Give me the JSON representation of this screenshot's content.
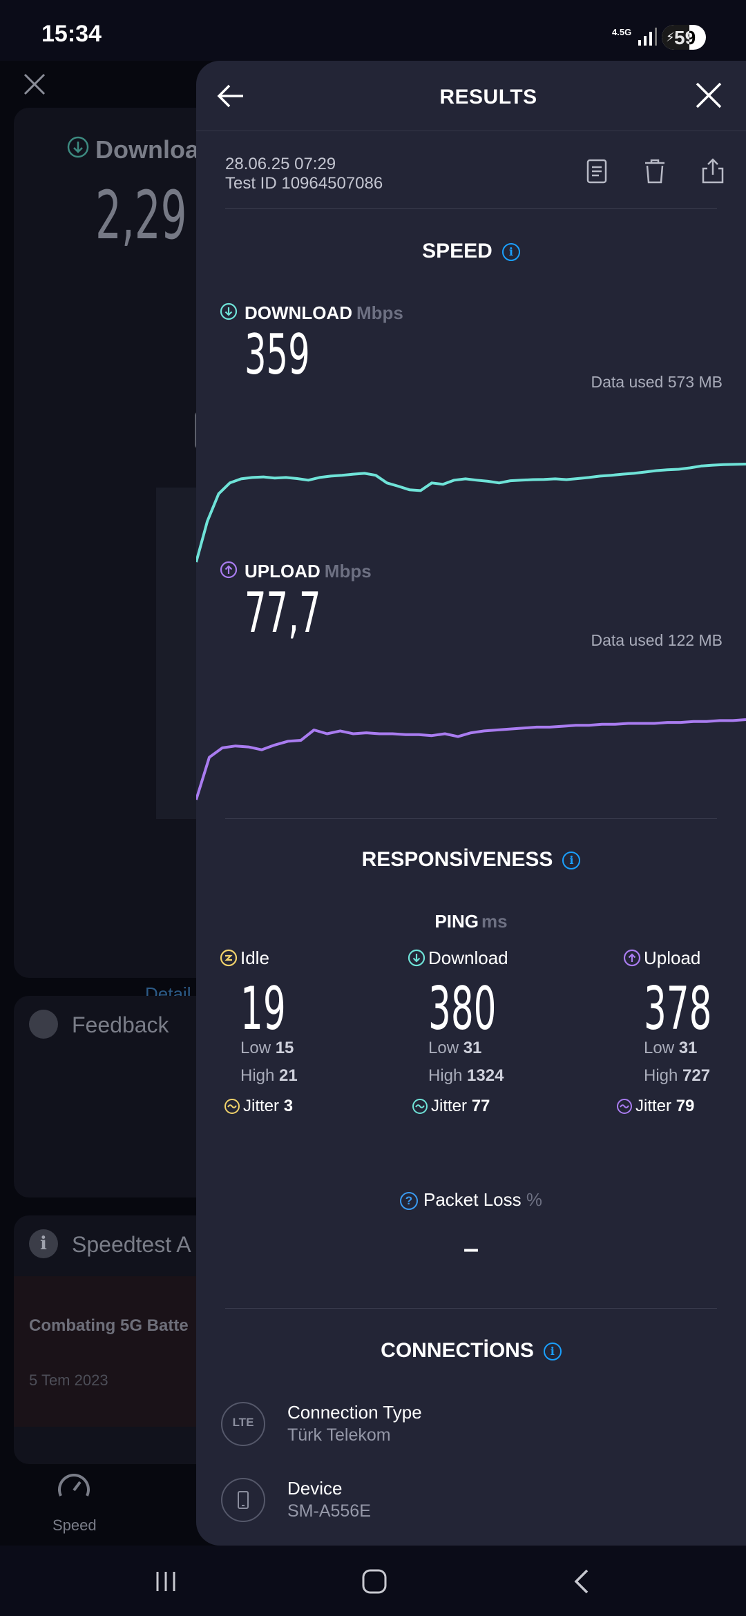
{
  "status_bar": {
    "time": "15:34",
    "network": "4.5G",
    "battery": "59"
  },
  "background_app": {
    "download_label": "Downloa",
    "download_value": "2,29",
    "detail_link": "Detail",
    "feedback_label": "Feedback",
    "articles_label": "Speedtest A",
    "article_title": "Combating 5G Batte",
    "article_date": "5 Tem 2023",
    "nav_speed_label": "Speed"
  },
  "panel": {
    "title": "RESULTS",
    "date": "28.06.25 07:29",
    "test_id": "Test ID 10964507086",
    "actions": [
      "document-icon",
      "trash-icon",
      "share-icon"
    ]
  },
  "speed": {
    "title": "SPEED",
    "download": {
      "label": "DOWNLOAD",
      "unit": "Mbps",
      "value": "359",
      "data_used": "Data used 573 MB",
      "color": "#6fe3d8"
    },
    "upload": {
      "label": "UPLOAD",
      "unit": "Mbps",
      "value": "77,7",
      "data_used": "Data used 122 MB",
      "color": "#a97cf0"
    }
  },
  "chart_data": [
    {
      "type": "line",
      "series": [
        {
          "values": [
            0,
            150,
            250,
            290,
            305,
            310,
            312,
            308,
            310,
            306,
            300,
            310,
            315,
            318,
            322,
            325,
            318,
            290,
            278,
            265,
            262,
            290,
            285,
            300,
            305,
            300,
            296,
            290,
            298,
            300,
            302,
            303,
            305,
            302,
            306,
            310,
            315,
            318,
            322,
            325,
            330,
            335,
            338,
            340,
            345,
            352,
            355,
            357,
            358,
            359
          ]
        }
      ],
      "xlabel": "",
      "ylabel": ""
    },
    {
      "type": "line",
      "series": [
        {
          "values": [
            0,
            45,
            55,
            57,
            56,
            53,
            58,
            62,
            63,
            74,
            70,
            73,
            70,
            71,
            70,
            70,
            69,
            69,
            68,
            70,
            67,
            71,
            73,
            74,
            75,
            76,
            77,
            77,
            78,
            79,
            79,
            80,
            80,
            81,
            81,
            81,
            82,
            82,
            83,
            83,
            84,
            84,
            85
          ]
        }
      ],
      "xlabel": "",
      "ylabel": ""
    }
  ],
  "responsiveness": {
    "title": "RESPONSİVENESS",
    "ping_label": "PING",
    "ping_unit": "ms",
    "idle": {
      "label": "Idle",
      "value": "19",
      "low_label": "Low",
      "low": "15",
      "high_label": "High",
      "high": "21",
      "jitter_label": "Jitter",
      "jitter": "3",
      "color": "#f2d36b"
    },
    "download": {
      "label": "Download",
      "value": "380",
      "low_label": "Low",
      "low": "31",
      "high_label": "High",
      "high": "1324",
      "jitter_label": "Jitter",
      "jitter": "77",
      "color": "#6fe3d8"
    },
    "upload": {
      "label": "Upload",
      "value": "378",
      "low_label": "Low",
      "low": "31",
      "high_label": "High",
      "high": "727",
      "jitter_label": "Jitter",
      "jitter": "79",
      "color": "#a97cf0"
    },
    "packet_loss_label": "Packet Loss",
    "packet_loss_unit": "%",
    "packet_loss_value": "–"
  },
  "connections": {
    "title": "CONNECTİONS",
    "items": [
      {
        "icon_text": "LTE",
        "label": "Connection Type",
        "value": "Türk Telekom"
      },
      {
        "icon_text": "",
        "label": "Device",
        "value": "SM-A556E"
      }
    ]
  },
  "colors": {
    "panel_bg": "#232536",
    "accent_info": "#1aa0ff"
  }
}
